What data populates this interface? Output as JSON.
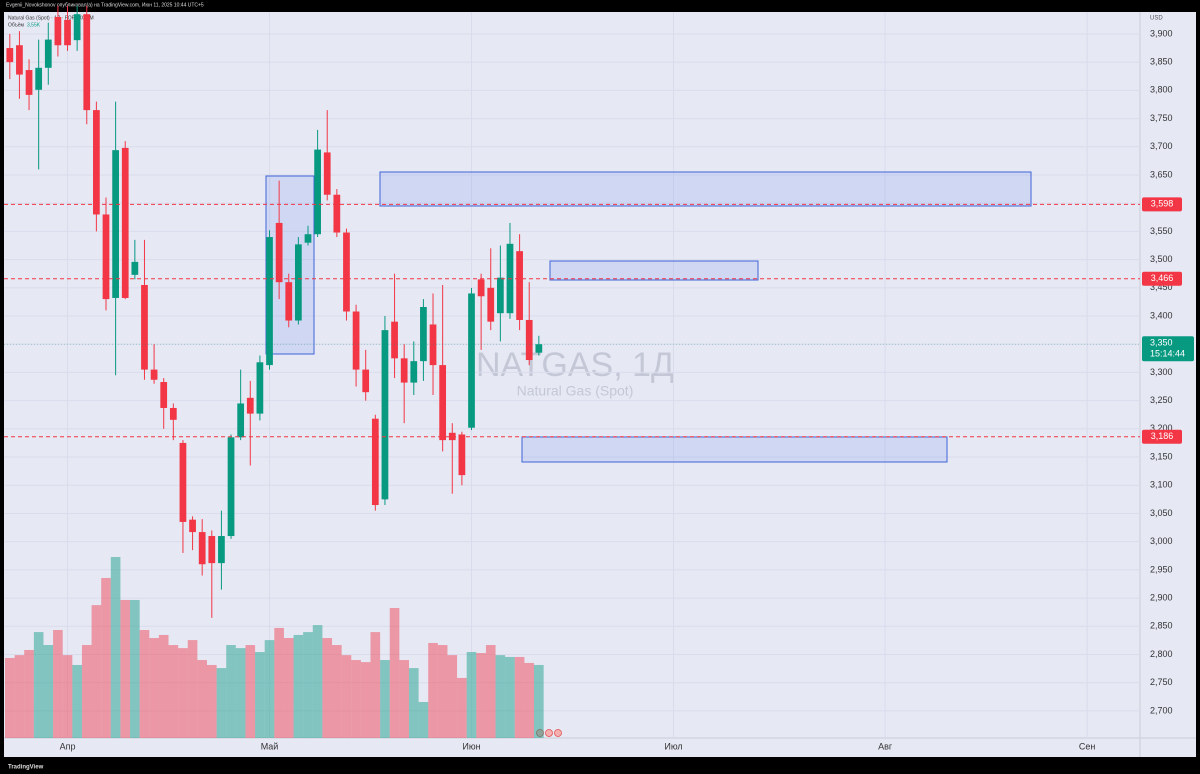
{
  "header": "Evgenii_Novokshonov опубликовал(а) на TradingView.com, Июн 11, 2025 10:44 UTC+5",
  "footer": "TradingView",
  "chart_data": {
    "type": "candlestick",
    "title": "NATGAS, 1Д",
    "subtitle": "Natural Gas (Spot)",
    "legend": "Natural Gas (Spot) · 1Д · FOREXCOM",
    "currency": "USD",
    "grid": true,
    "up_color": "#089981",
    "down_color": "#f23645",
    "categories": [
      null,
      null,
      null,
      null,
      null,
      null,
      "Апр",
      null,
      null,
      null,
      null,
      null,
      null,
      null,
      null,
      null,
      null,
      null,
      null,
      null,
      null,
      null,
      null,
      null,
      null,
      null,
      null,
      "Май",
      null,
      null,
      null,
      null,
      null,
      null,
      null,
      null,
      null,
      null,
      null,
      null,
      null,
      null,
      null,
      null,
      null,
      null,
      null,
      null,
      "Июн",
      null,
      null,
      null,
      null,
      null,
      null,
      null,
      null,
      null,
      null,
      null,
      null,
      null,
      null,
      null,
      null,
      null,
      null,
      null,
      null,
      "Июл",
      null,
      null,
      null,
      null,
      null,
      null,
      null,
      null,
      null,
      null,
      null,
      null,
      null,
      null,
      null,
      null,
      null,
      null,
      null,
      null,
      null,
      "Авг",
      null,
      null,
      null,
      null,
      null,
      null,
      null,
      null,
      null,
      null,
      null,
      null,
      null,
      null,
      null,
      null,
      null,
      null,
      null,
      null,
      "Сен",
      null,
      null,
      null,
      null,
      null
    ],
    "open": [
      3875,
      3880,
      3836,
      3801,
      3840,
      3930,
      3925,
      3889,
      3935,
      3765,
      3580,
      3432,
      3698,
      3473,
      3455,
      3305,
      3283,
      3237,
      3175,
      3039,
      3017,
      3010,
      2962,
      3010,
      3185,
      3255,
      3227,
      3313,
      3565,
      3460,
      3392,
      3530,
      3545,
      3690,
      3615,
      3548,
      3408,
      3305,
      3218,
      3075,
      3390,
      3325,
      3282,
      3320,
      3385,
      3313,
      3193,
      3190,
      3202,
      3465,
      3450,
      3405,
      3405,
      3515,
      3393,
      3335,
      null,
      null,
      null,
      null,
      null,
      null,
      null,
      null,
      null,
      null,
      null,
      null,
      null,
      null,
      null,
      null,
      null,
      null,
      null,
      null,
      null,
      null,
      null,
      null,
      null,
      null,
      null,
      null,
      null,
      null,
      null,
      null,
      null,
      null,
      null,
      null,
      null,
      null,
      null,
      null,
      null,
      null,
      null,
      null,
      null,
      null,
      null,
      null,
      null,
      null,
      null,
      null,
      null,
      null,
      null,
      null,
      null,
      null,
      null,
      null,
      null,
      null
    ],
    "high": [
      3900,
      3905,
      3855,
      3890,
      3920,
      3950,
      3950,
      3950,
      3950,
      3780,
      3610,
      3780,
      3710,
      3535,
      3535,
      3350,
      3290,
      3245,
      3180,
      3045,
      3040,
      3020,
      3055,
      3190,
      3305,
      3285,
      3330,
      3552,
      3640,
      3475,
      3540,
      3560,
      3730,
      3765,
      3625,
      3555,
      3420,
      3340,
      3225,
      3400,
      3475,
      3350,
      3355,
      3430,
      3440,
      3455,
      3210,
      3195,
      3450,
      3475,
      3520,
      3525,
      3565,
      3545,
      3460,
      3365,
      null,
      null,
      null,
      null,
      null,
      null,
      null,
      null,
      null,
      null,
      null,
      null,
      null,
      null,
      null,
      null,
      null,
      null,
      null,
      null,
      null,
      null,
      null,
      null,
      null,
      null,
      null,
      null,
      null,
      null,
      null,
      null,
      null,
      null,
      null,
      null,
      null,
      null,
      null,
      null,
      null,
      null,
      null,
      null,
      null,
      null,
      null,
      null,
      null,
      null,
      null,
      null,
      null,
      null,
      null,
      null,
      null,
      null,
      null,
      null,
      null,
      null
    ],
    "low": [
      3820,
      3785,
      3765,
      3660,
      3810,
      3860,
      3870,
      3870,
      3740,
      3550,
      3410,
      3295,
      3430,
      3465,
      3287,
      3280,
      3200,
      3180,
      2980,
      2985,
      2940,
      2865,
      2915,
      3005,
      3180,
      3135,
      3215,
      3305,
      3430,
      3380,
      3385,
      3525,
      3540,
      3605,
      3540,
      3392,
      3275,
      3250,
      3055,
      3065,
      3290,
      3210,
      3260,
      3285,
      3260,
      3160,
      3085,
      3100,
      3198,
      3340,
      3375,
      3355,
      3395,
      3375,
      3313,
      3330,
      null,
      null,
      null,
      null,
      null,
      null,
      null,
      null,
      null,
      null,
      null,
      null,
      null,
      null,
      null,
      null,
      null,
      null,
      null,
      null,
      null,
      null,
      null,
      null,
      null,
      null,
      null,
      null,
      null,
      null,
      null,
      null,
      null,
      null,
      null,
      null,
      null,
      null,
      null,
      null,
      null,
      null,
      null,
      null,
      null,
      null,
      null,
      null,
      null,
      null,
      null,
      null,
      null,
      null,
      null,
      null,
      null,
      null,
      null,
      null,
      null,
      null
    ],
    "close": [
      3850,
      3828,
      3792,
      3840,
      3890,
      3880,
      3880,
      3935,
      3765,
      3580,
      3430,
      3694,
      3432,
      3496,
      3305,
      3287,
      3237,
      3216,
      3035,
      3017,
      2960,
      2962,
      3010,
      3185,
      3245,
      3227,
      3318,
      3540,
      3460,
      3392,
      3527,
      3545,
      3695,
      3615,
      3548,
      3408,
      3305,
      3265,
      3065,
      3375,
      3325,
      3282,
      3320,
      3416,
      3313,
      3180,
      3180,
      3118,
      3440,
      3435,
      3390,
      3468,
      3528,
      3393,
      3322,
      3350,
      null,
      null,
      null,
      null,
      null,
      null,
      null,
      null,
      null,
      null,
      null,
      null,
      null,
      null,
      null,
      null,
      null,
      null,
      null,
      null,
      null,
      null,
      null,
      null,
      null,
      null,
      null,
      null,
      null,
      null,
      null,
      null,
      null,
      null,
      null,
      null,
      null,
      null,
      null,
      null,
      null,
      null,
      null,
      null,
      null,
      null,
      null,
      null,
      null,
      null,
      null,
      null,
      null,
      null,
      null,
      null,
      null,
      null,
      null,
      null,
      null,
      null
    ],
    "volume": {
      "name": "Объём",
      "last": {
        "value": 3.55,
        "label": "3,55K"
      },
      "values": [
        3.89,
        4.03,
        4.28,
        5.15,
        4.52,
        5.25,
        4.03,
        3.55,
        4.52,
        6.46,
        7.78,
        8.8,
        6.71,
        6.71,
        5.25,
        4.86,
        5.01,
        4.52,
        4.37,
        4.76,
        3.79,
        3.55,
        3.4,
        4.52,
        4.37,
        4.52,
        4.18,
        4.76,
        5.35,
        4.86,
        5.01,
        5.15,
        5.49,
        4.86,
        4.52,
        4.03,
        3.79,
        3.69,
        5.15,
        3.79,
        6.32,
        3.79,
        3.4,
        1.75,
        4.62,
        4.52,
        4.03,
        2.92,
        4.18,
        4.13,
        4.52,
        4.03,
        3.94,
        3.94,
        3.65,
        3.55,
        null,
        null,
        null,
        null,
        null,
        null,
        null,
        null,
        null,
        null,
        null,
        null,
        null,
        null,
        null,
        null,
        null,
        null,
        null,
        null,
        null,
        null,
        null,
        null,
        null,
        null,
        null,
        null,
        null,
        null,
        null,
        null,
        null,
        null,
        null,
        null,
        null,
        null,
        null,
        null,
        null,
        null,
        null,
        null,
        null,
        null,
        null,
        null,
        null,
        null,
        null,
        null,
        null,
        null,
        null,
        null,
        null,
        null,
        null,
        null,
        null,
        null
      ]
    },
    "ylim": [
      2652,
      3946
    ],
    "yticks": [
      {
        "value": 3900,
        "label": "3,900"
      },
      {
        "value": 3850,
        "label": "3,850"
      },
      {
        "value": 3800,
        "label": "3,800"
      },
      {
        "value": 3750,
        "label": "3,750"
      },
      {
        "value": 3700,
        "label": "3,700"
      },
      {
        "value": 3650,
        "label": "3,650"
      },
      {
        "value": 3600,
        "label": "3,600"
      },
      {
        "value": 3550,
        "label": "3,550"
      },
      {
        "value": 3500,
        "label": "3,500"
      },
      {
        "value": 3450,
        "label": "3,450"
      },
      {
        "value": 3400,
        "label": "3,400"
      },
      {
        "value": 3350,
        "label": "3,350"
      },
      {
        "value": 3300,
        "label": "3,300"
      },
      {
        "value": 3250,
        "label": "3,250"
      },
      {
        "value": 3200,
        "label": "3,200"
      },
      {
        "value": 3150,
        "label": "3,150"
      },
      {
        "value": 3100,
        "label": "3,100"
      },
      {
        "value": 3050,
        "label": "3,050"
      },
      {
        "value": 3000,
        "label": "3,000"
      },
      {
        "value": 2950,
        "label": "2,950"
      },
      {
        "value": 2900,
        "label": "2,900"
      },
      {
        "value": 2850,
        "label": "2,850"
      },
      {
        "value": 2800,
        "label": "2,800"
      },
      {
        "value": 2750,
        "label": "2,750"
      },
      {
        "value": 2700,
        "label": "2,700"
      }
    ],
    "levels": [
      {
        "value": 3598,
        "label": "3,598",
        "color": "#f23645"
      },
      {
        "value": 3466,
        "label": "3,466",
        "color": "#f23645"
      },
      {
        "value": 3186,
        "label": "3,186",
        "color": "#f23645"
      }
    ],
    "last_price": {
      "value": 3350,
      "label": "3,350",
      "time": "15:14:44",
      "color": "#089981"
    }
  }
}
